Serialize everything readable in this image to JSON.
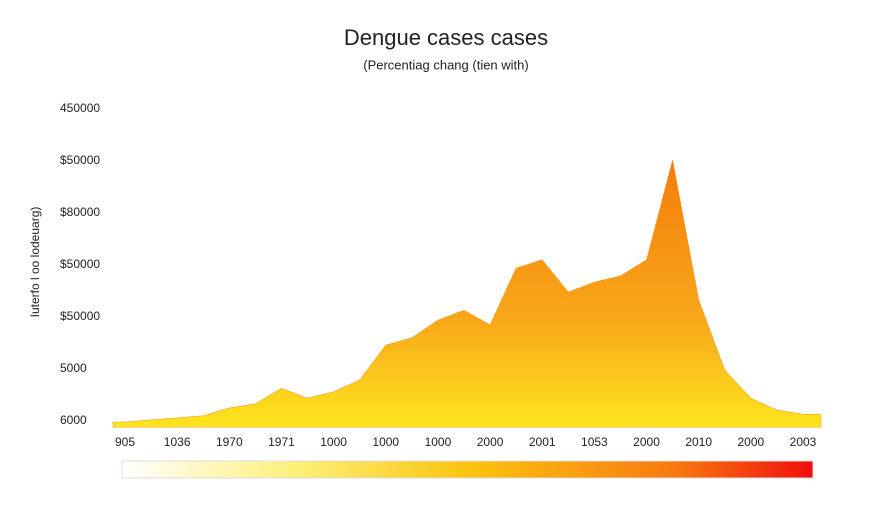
{
  "chart_data": {
    "type": "area",
    "title": "Dengue cases cases",
    "subtitle": "(Percentiag chang (tien with)",
    "y_label": "Iuterfo l oo lodeuarg)",
    "categories": [
      "905",
      null,
      "1036",
      null,
      "1970",
      null,
      "1971",
      null,
      "1000",
      null,
      "1000",
      null,
      "1000",
      null,
      "2000",
      null,
      "2001",
      null,
      "1053",
      null,
      "2000",
      null,
      "2010",
      null,
      "2000",
      null,
      "2003"
    ],
    "values": [
      -0.02,
      0.02,
      0.06,
      0.1,
      0.25,
      0.33,
      0.63,
      0.44,
      0.56,
      0.79,
      1.46,
      1.6,
      1.94,
      2.13,
      1.85,
      2.94,
      3.1,
      2.48,
      2.67,
      2.79,
      3.1,
      5.02,
      2.33,
      0.98,
      0.44,
      0.21,
      0.13
    ],
    "ylim": [
      -0.12,
      6.2
    ],
    "yticks": [
      {
        "value": 6,
        "label": "450000"
      },
      {
        "value": 5,
        "label": "$50000"
      },
      {
        "value": 4,
        "label": "$80000"
      },
      {
        "value": 3,
        "label": "$50000"
      },
      {
        "value": 2,
        "label": "$50000"
      },
      {
        "value": 1,
        "label": "5000"
      },
      {
        "value": 0,
        "label": "6000"
      }
    ],
    "color": "#f7941d",
    "grid": false
  }
}
